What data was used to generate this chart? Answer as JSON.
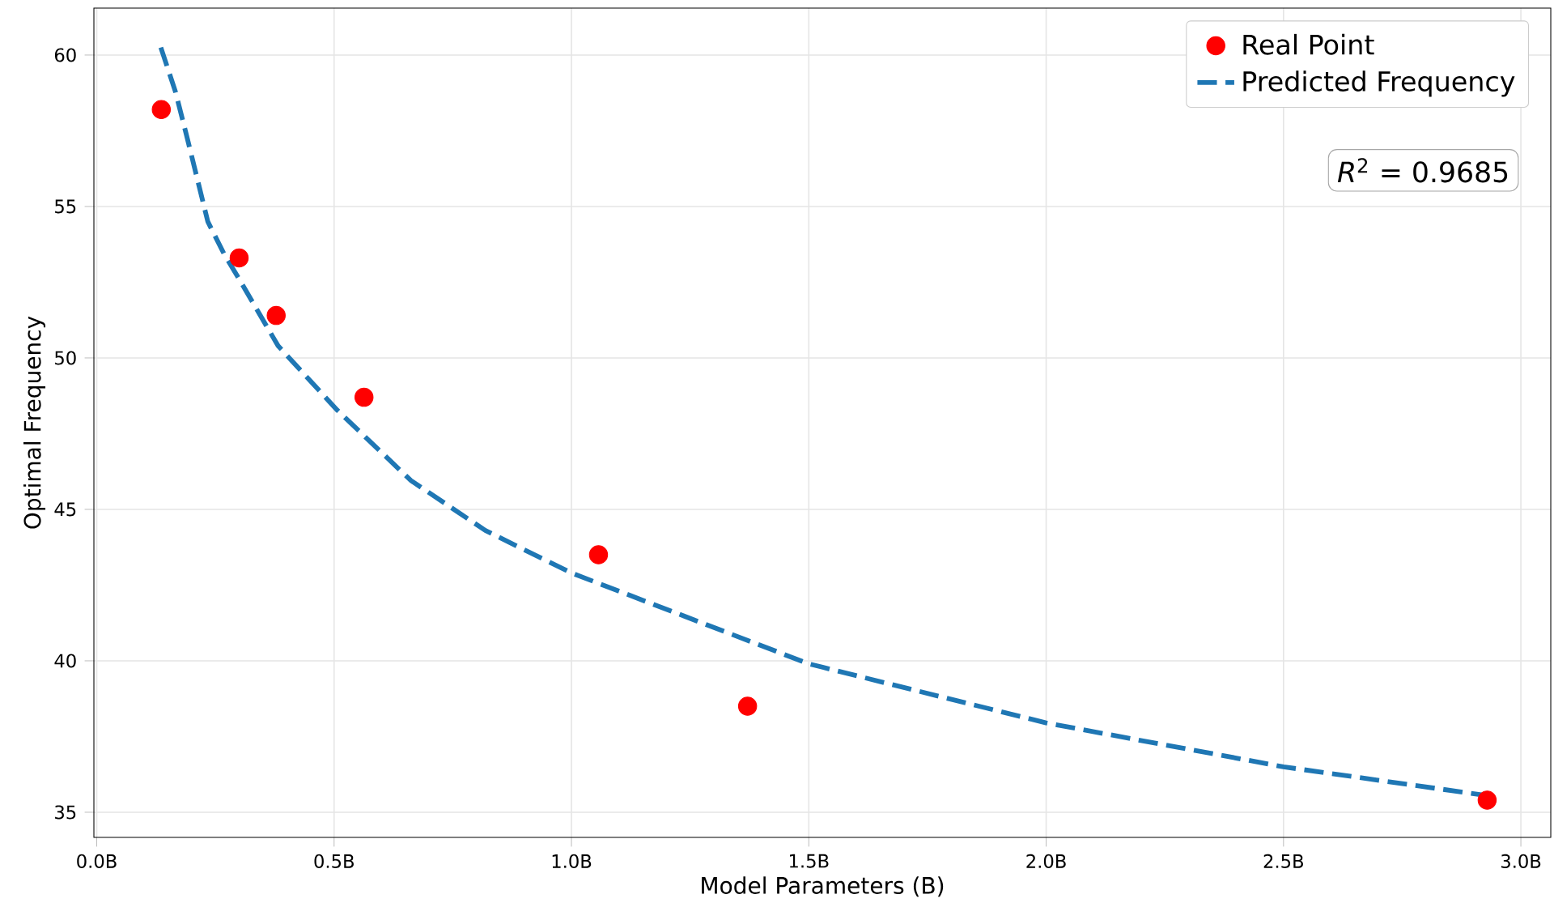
{
  "chart_data": {
    "type": "scatter",
    "xlabel": "Model Parameters (B)",
    "ylabel": "Optimal Frequency",
    "xlim": [
      -0.006,
      3.063
    ],
    "ylim": [
      34.17,
      61.55
    ],
    "xticks": [
      {
        "value": 0,
        "label": "0.0B"
      },
      {
        "value": 0.5,
        "label": "0.5B"
      },
      {
        "value": 1,
        "label": "1.0B"
      },
      {
        "value": 1.5,
        "label": "1.5B"
      },
      {
        "value": 2,
        "label": "2.0B"
      },
      {
        "value": 2.5,
        "label": "2.5B"
      },
      {
        "value": 3,
        "label": "3.0B"
      }
    ],
    "yticks": [
      35,
      40,
      45,
      50,
      55,
      60
    ],
    "grid": true,
    "legend": "top right",
    "annotations": [
      "*R*$^{2}$ = 0.9685"
    ],
    "series": [
      {
        "name": "Real Point",
        "color": "#ff0000",
        "marker": "circle",
        "x": [
          0.136,
          0.3,
          0.378,
          0.563,
          1.057,
          1.371,
          2.929
        ],
        "values": [
          58.2,
          53.3,
          51.4,
          48.7,
          43.5,
          38.5,
          35.4
        ]
      },
      {
        "name": "Predicted Frequency",
        "type": "line",
        "color": "#1f77b4",
        "line_style": "dashed",
        "marker": "none",
        "x": [
          0.135,
          0.166,
          0.189,
          0.234,
          0.268,
          0.302,
          0.382,
          0.507,
          0.662,
          0.819,
          1.0,
          1.5,
          2.0,
          2.5,
          2.92
        ],
        "values": [
          60.25,
          58.78,
          57.36,
          54.5,
          53.44,
          52.55,
          50.4,
          48.27,
          45.95,
          44.3,
          42.9,
          39.9,
          37.95,
          36.5,
          35.57
        ]
      }
    ]
  }
}
